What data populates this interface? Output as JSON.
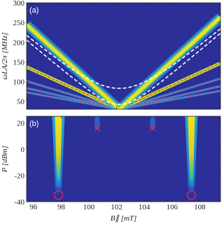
{
  "chart_data": [
    {
      "type": "heatmap",
      "label": "(a)",
      "ylabel": "ωLA/2π [MHz]",
      "xlim": [
        95.5,
        109.5
      ],
      "ylim": [
        30,
        300
      ],
      "yticks": [
        50,
        100,
        150,
        200,
        250,
        300
      ]
    },
    {
      "type": "heatmap",
      "label": "(b)",
      "ylabel": "P [dBm]",
      "xlabel": "B∥ [mT]",
      "xlim": [
        95.5,
        109.5
      ],
      "ylim": [
        -40,
        25
      ],
      "yticks": [
        -40,
        -20,
        0,
        20
      ],
      "xticks": [
        96,
        98,
        100,
        102,
        104,
        106,
        108
      ],
      "marker_color": "#e8245a",
      "crosses": {
        "x": [
          100.6,
          104.6
        ],
        "y": [
          16,
          16
        ]
      },
      "circles": {
        "x": [
          97.8,
          107.4
        ],
        "y": [
          -35,
          -35
        ]
      }
    }
  ]
}
